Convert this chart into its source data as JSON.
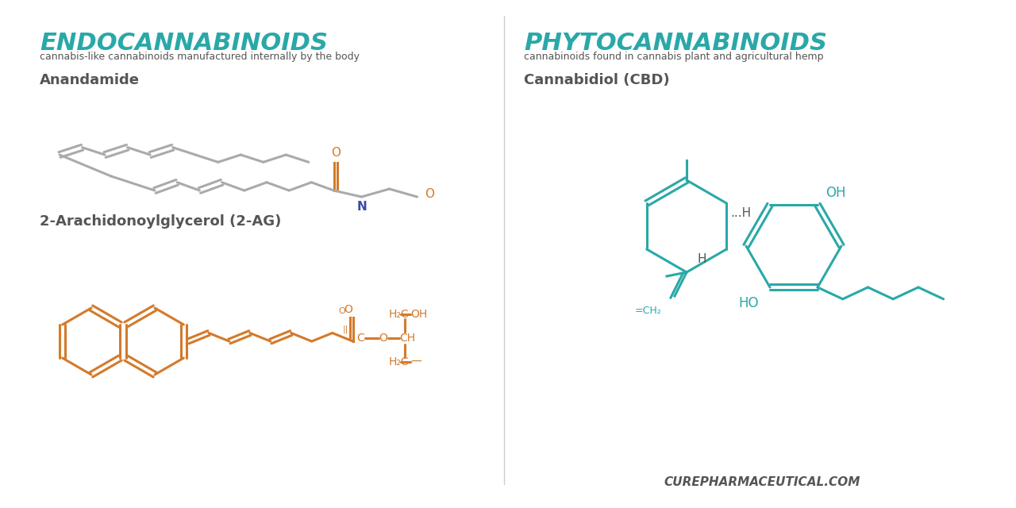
{
  "bg_color": "#ffffff",
  "teal": "#2aa8a8",
  "orange": "#d47a2a",
  "gray_mol": "#aaaaaa",
  "dark_blue": "#3a4a7a",
  "dark_gray": "#555555",
  "title_left": "ENDOCANNABINOIDS",
  "subtitle_left": "cannabis-like cannabinoids manufactured internally by the body",
  "title_right": "PHYTOCANNABINOIDS",
  "subtitle_right": "cannabinoids found in cannabis plant and agricultural hemp",
  "mol1_name": "Anandamide",
  "mol2_name": "2-Arachidonoylglycerol (2-AG)",
  "mol3_name": "Cannabidiol (CBD)",
  "footer": "CUREPHARMACEUTICAL.COM"
}
